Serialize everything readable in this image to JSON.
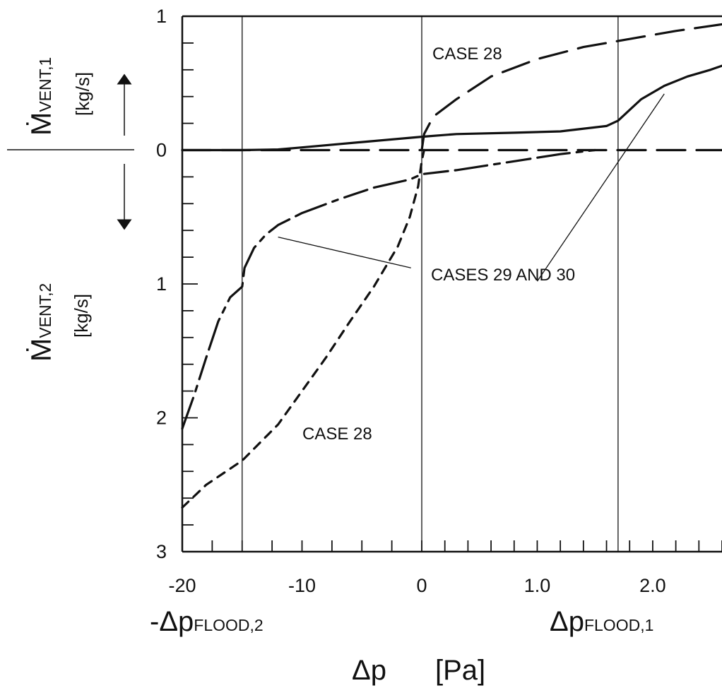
{
  "chart_data": {
    "type": "line",
    "axes": {
      "x_tick_labels": [
        "-20",
        "-10",
        "0",
        "1.0",
        "2.0"
      ],
      "x_tick_values": [
        -20,
        -10,
        0,
        1.0,
        2.0
      ],
      "x_range_negative": [
        -20,
        0
      ],
      "x_range_positive": [
        0,
        2.6
      ],
      "x_reference_lines": [
        -15,
        0,
        1.7
      ],
      "xlabel_left": {
        "main": "-Δp",
        "sub": "FLOOD,2"
      },
      "xlabel_right": {
        "main": "Δp",
        "sub": "FLOOD,1"
      },
      "xlabel": "Δp",
      "xlabel_unit": "[Pa]",
      "y_tick_labels": [
        "1",
        "0",
        "1",
        "2",
        "3"
      ],
      "y_tick_values": [
        1,
        0,
        -1,
        -2,
        -3
      ],
      "y_range": [
        -3,
        1
      ],
      "ylabel_upper": {
        "main": "Ṁ",
        "sub": "VENT,1",
        "unit": "[kg/s]"
      },
      "ylabel_lower": {
        "main": "Ṁ",
        "sub": "VENT,2",
        "unit": "[kg/s]"
      }
    },
    "series": [
      {
        "style": "solid-dashed",
        "points": [
          [
            -20,
            0
          ],
          [
            -18,
            0
          ],
          [
            -15,
            0
          ],
          [
            -12,
            0.005
          ],
          [
            -10,
            0.02
          ],
          [
            -5,
            0.06
          ],
          [
            0,
            0.1
          ],
          [
            0.3,
            0.12
          ],
          [
            0.8,
            0.13
          ],
          [
            1.2,
            0.14
          ],
          [
            1.6,
            0.18
          ],
          [
            1.7,
            0.22
          ],
          [
            1.9,
            0.38
          ],
          [
            2.1,
            0.48
          ],
          [
            2.3,
            0.55
          ],
          [
            2.5,
            0.6
          ],
          [
            2.6,
            0.63
          ]
        ]
      },
      {
        "style": "dashed",
        "points": [
          [
            -20,
            0
          ],
          [
            -10,
            0
          ],
          [
            -5,
            0
          ],
          [
            0,
            0
          ],
          [
            0.6,
            0
          ],
          [
            1.0,
            0
          ],
          [
            1.6,
            0
          ],
          [
            2.0,
            0
          ],
          [
            2.6,
            0
          ]
        ]
      },
      {
        "style": "dashed",
        "points": [
          [
            0,
            0
          ],
          [
            0.02,
            0.12
          ],
          [
            0.1,
            0.25
          ],
          [
            0.3,
            0.38
          ],
          [
            0.6,
            0.55
          ],
          [
            1.0,
            0.68
          ],
          [
            1.4,
            0.77
          ],
          [
            1.8,
            0.83
          ],
          [
            2.2,
            0.89
          ],
          [
            2.6,
            0.94
          ]
        ]
      },
      {
        "style": "solid-dashed",
        "points": [
          [
            -20,
            -2.08
          ],
          [
            -19,
            -1.83
          ],
          [
            -18,
            -1.55
          ],
          [
            -17,
            -1.28
          ],
          [
            -16,
            -1.1
          ],
          [
            -15,
            -1.02
          ],
          [
            -14.8,
            -0.88
          ],
          [
            -14,
            -0.73
          ],
          [
            -13,
            -0.63
          ],
          [
            -12,
            -0.56
          ],
          [
            -10,
            -0.47
          ],
          [
            -7,
            -0.37
          ],
          [
            -4,
            -0.28
          ],
          [
            -1,
            -0.22
          ],
          [
            0,
            -0.18
          ],
          [
            0.3,
            -0.15
          ],
          [
            0.6,
            -0.11
          ],
          [
            0.9,
            -0.07
          ],
          [
            1.2,
            -0.03
          ],
          [
            1.5,
            0.0
          ]
        ]
      },
      {
        "style": "short-dashed",
        "points": [
          [
            -20,
            -2.67
          ],
          [
            -18,
            -2.5
          ],
          [
            -15,
            -2.32
          ],
          [
            -12,
            -2.05
          ],
          [
            -10,
            -1.8
          ],
          [
            -8,
            -1.55
          ],
          [
            -6,
            -1.28
          ],
          [
            -4,
            -1.02
          ],
          [
            -2,
            -0.72
          ],
          [
            -1,
            -0.5
          ],
          [
            -0.3,
            -0.27
          ],
          [
            0,
            -0.08
          ],
          [
            0.02,
            0
          ]
        ]
      }
    ],
    "annotations": [
      {
        "text": "CASE 28",
        "anchor_x": 0.2,
        "anchor_y": 0.75
      },
      {
        "text": "CASES 29 AND 30",
        "anchor_x": 0.3,
        "anchor_y": -1.0
      },
      {
        "text": "CASE 28",
        "anchor_x": -10,
        "anchor_y": -2.1
      }
    ],
    "leader_lines": [
      {
        "from": [
          -12,
          -0.65
        ],
        "to": [
          -0.9,
          -0.88
        ]
      },
      {
        "from": [
          1.0,
          -0.98
        ],
        "to": [
          2.1,
          0.42
        ]
      }
    ],
    "direction_arrows": [
      "up",
      "down"
    ]
  }
}
